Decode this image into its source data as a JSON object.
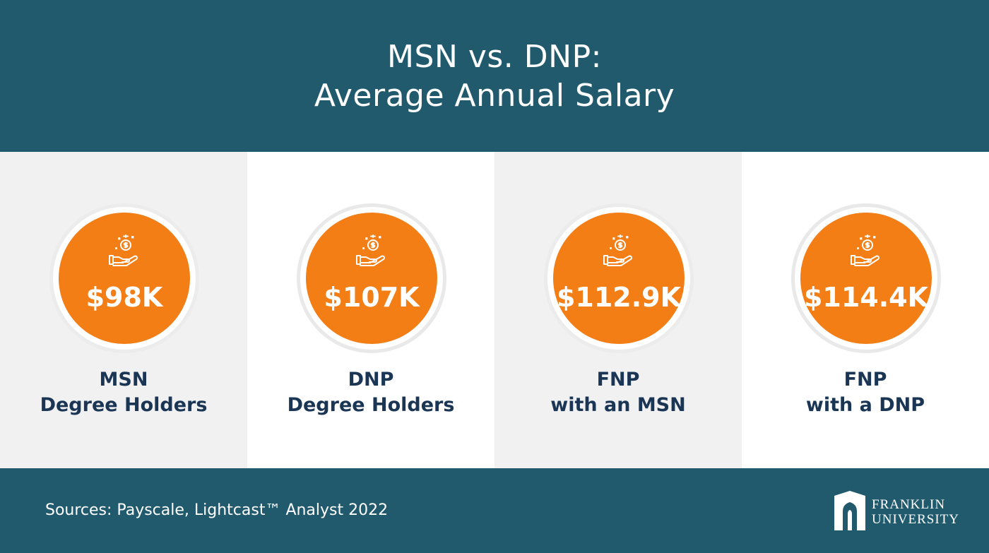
{
  "header": {
    "title_line1": "MSN vs. DNP:",
    "title_line2": "Average Annual Salary"
  },
  "cards": [
    {
      "amount": "$98K",
      "label_line1": "MSN",
      "label_line2": "Degree Holders",
      "icon": "hand-coin-icon"
    },
    {
      "amount": "$107K",
      "label_line1": "DNP",
      "label_line2": "Degree Holders",
      "icon": "hand-coin-icon"
    },
    {
      "amount": "$112.9K",
      "label_line1": "FNP",
      "label_line2": "with an MSN",
      "icon": "hand-coin-icon"
    },
    {
      "amount": "$114.4K",
      "label_line1": "FNP",
      "label_line2": "with a DNP",
      "icon": "hand-coin-icon"
    }
  ],
  "footer": {
    "sources": "Sources: Payscale, Lightcast™ Analyst 2022",
    "logo_line1": "FRANKLIN",
    "logo_line2": "UNIVERSITY"
  },
  "colors": {
    "header_bg": "#215a6d",
    "accent_orange": "#f47e16",
    "label_navy": "#1b3554",
    "card_shade": "#f1f1f1"
  }
}
